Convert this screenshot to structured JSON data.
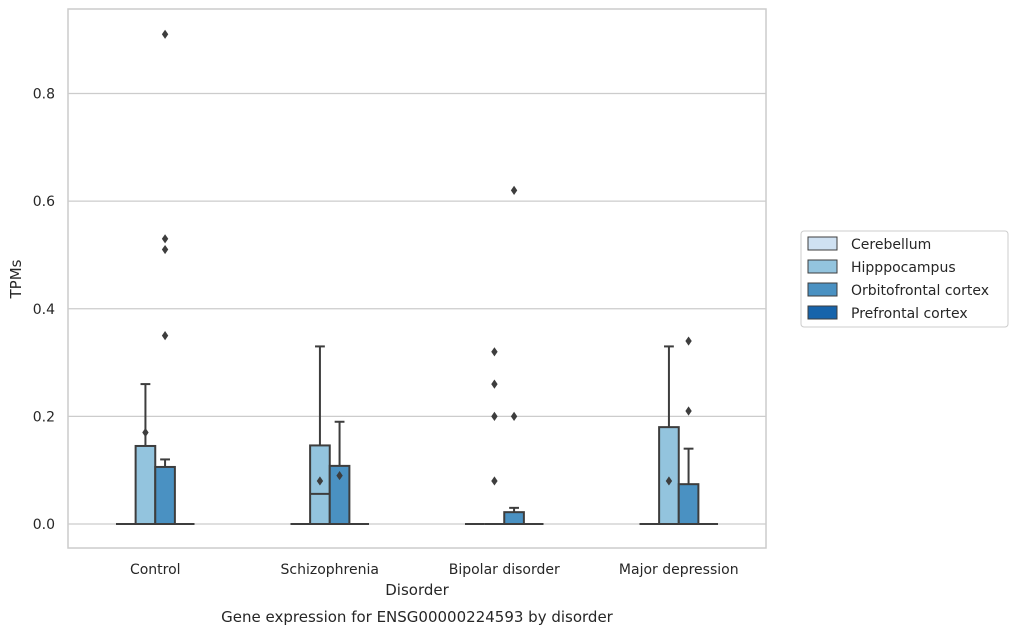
{
  "chart_data": {
    "type": "box",
    "title": "",
    "caption": "Gene expression for ENSG00000224593 by disorder",
    "xlabel": "Disorder",
    "ylabel": "TPMs",
    "ylim": [
      -0.045,
      0.96
    ],
    "yticks": [
      0.0,
      0.2,
      0.4,
      0.6,
      0.8
    ],
    "ytick_labels": [
      "0.0",
      "0.2",
      "0.4",
      "0.6",
      "0.8"
    ],
    "grid": "horizontal",
    "legend_position": "right",
    "categories": [
      "Control",
      "Schizophrenia",
      "Bipolar disorder",
      "Major depression"
    ],
    "series": [
      {
        "name": "Cerebellum",
        "color": "#cfe1f2",
        "boxes": [
          {
            "q1": 0,
            "median": 0,
            "q3": 0,
            "whisker_low": 0,
            "whisker_high": 0,
            "outliers": []
          },
          {
            "q1": 0,
            "median": 0,
            "q3": 0,
            "whisker_low": 0,
            "whisker_high": 0,
            "outliers": []
          },
          {
            "q1": 0,
            "median": 0,
            "q3": 0,
            "whisker_low": 0,
            "whisker_high": 0,
            "outliers": []
          },
          {
            "q1": 0,
            "median": 0,
            "q3": 0,
            "whisker_low": 0,
            "whisker_high": 0,
            "outliers": []
          }
        ]
      },
      {
        "name": "Hipppocampus",
        "color": "#93c4de",
        "boxes": [
          {
            "q1": 0,
            "median": 0,
            "q3": 0.145,
            "whisker_low": 0,
            "whisker_high": 0.26,
            "outliers": [
              0.17
            ]
          },
          {
            "q1": 0,
            "median": 0.056,
            "q3": 0.146,
            "whisker_low": 0,
            "whisker_high": 0.33,
            "outliers": [
              0.08
            ]
          },
          {
            "q1": 0,
            "median": 0,
            "q3": 0,
            "whisker_low": 0,
            "whisker_high": 0,
            "outliers": [
              0.08,
              0.2,
              0.26,
              0.32
            ]
          },
          {
            "q1": 0,
            "median": 0,
            "q3": 0.18,
            "whisker_low": 0,
            "whisker_high": 0.33,
            "outliers": [
              0.08
            ]
          }
        ]
      },
      {
        "name": "Orbitofrontal cortex",
        "color": "#4a91c2",
        "boxes": [
          {
            "q1": 0,
            "median": 0,
            "q3": 0.106,
            "whisker_low": 0,
            "whisker_high": 0.12,
            "outliers": [
              0.35,
              0.51,
              0.53,
              0.91
            ]
          },
          {
            "q1": 0,
            "median": 0,
            "q3": 0.108,
            "whisker_low": 0,
            "whisker_high": 0.19,
            "outliers": [
              0.09
            ]
          },
          {
            "q1": 0,
            "median": 0,
            "q3": 0.022,
            "whisker_low": 0,
            "whisker_high": 0.03,
            "outliers": [
              0.2,
              0.62
            ]
          },
          {
            "q1": 0,
            "median": 0,
            "q3": 0.074,
            "whisker_low": 0,
            "whisker_high": 0.14,
            "outliers": [
              0.21,
              0.34
            ]
          }
        ]
      },
      {
        "name": "Prefrontal cortex",
        "color": "#1764ab",
        "boxes": [
          {
            "q1": 0,
            "median": 0,
            "q3": 0,
            "whisker_low": 0,
            "whisker_high": 0,
            "outliers": []
          },
          {
            "q1": 0,
            "median": 0,
            "q3": 0,
            "whisker_low": 0,
            "whisker_high": 0,
            "outliers": []
          },
          {
            "q1": 0,
            "median": 0,
            "q3": 0,
            "whisker_low": 0,
            "whisker_high": 0,
            "outliers": []
          },
          {
            "q1": 0,
            "median": 0,
            "q3": 0,
            "whisker_low": 0,
            "whisker_high": 0,
            "outliers": []
          }
        ]
      }
    ]
  }
}
